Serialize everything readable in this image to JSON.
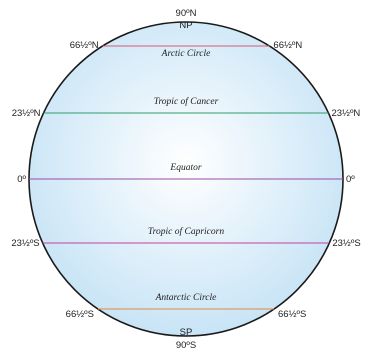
{
  "poles": {
    "north_degrees": "90ºN",
    "north_abbrev": "NP",
    "south_abbrev": "SP",
    "south_degrees": "90ºS"
  },
  "latitudes": [
    {
      "key": "arctic-circle",
      "name": "Arctic Circle",
      "left_label": "66½ºN",
      "right_label": "66½ºN",
      "latitude": 66.5,
      "color": "#d45a78"
    },
    {
      "key": "tropic-of-cancer",
      "name": "Tropic of Cancer",
      "left_label": "23½ºN",
      "right_label": "23½ºN",
      "latitude": 23.5,
      "color": "#2e9e6a"
    },
    {
      "key": "equator",
      "name": "Equator",
      "left_label": "0º",
      "right_label": "0º",
      "latitude": 0,
      "color": "#9b4aa8"
    },
    {
      "key": "tropic-of-capricorn",
      "name": "Tropic of Capricorn",
      "left_label": "23½ºS",
      "right_label": "23½ºS",
      "latitude": -23.5,
      "color": "#c2439a"
    },
    {
      "key": "antarctic-circle",
      "name": "Antarctic Circle",
      "left_label": "66½ºS",
      "right_label": "66½ºS",
      "latitude": -66.5,
      "color": "#e08a3c"
    }
  ],
  "colors": {
    "globe_fill_center": "#ffffff",
    "globe_fill_edge": "#c8e4f6",
    "globe_outline": "#1a1a1a"
  }
}
